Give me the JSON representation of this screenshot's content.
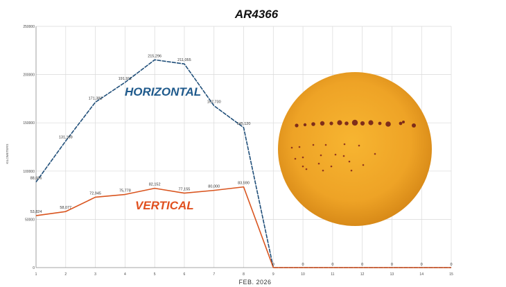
{
  "chart_data": {
    "type": "line",
    "title": "AR4366",
    "xlabel": "FEB. 2026",
    "ylabel": "KILOMETERS",
    "x": [
      1,
      2,
      3,
      4,
      5,
      6,
      7,
      8,
      9,
      10,
      11,
      12,
      13,
      14,
      15
    ],
    "xlim": [
      1,
      15
    ],
    "ylim": [
      0,
      250000
    ],
    "yticks": [
      0,
      50000,
      100000,
      150000,
      200000,
      250000
    ],
    "grid": true,
    "series": [
      {
        "name": "HORIZONTAL",
        "color": "#1f4e79",
        "dashed": true,
        "values": [
          88686,
          131189,
          171382,
          191911,
          215296,
          211055,
          167730,
          145120,
          0,
          0,
          0,
          0,
          0,
          0,
          0
        ],
        "labels": [
          "88,686",
          "131,189",
          "171,382",
          "191,911",
          "215,296",
          "211,055",
          "167,730",
          "145,120",
          "0",
          "0",
          "0",
          "0",
          "0",
          "0",
          "0"
        ]
      },
      {
        "name": "VERTICAL",
        "color": "#d9541e",
        "dashed": false,
        "values": [
          53824,
          58077,
          72945,
          75778,
          82152,
          77155,
          80000,
          83590,
          0,
          0,
          0,
          0,
          0,
          0,
          0
        ],
        "labels": [
          "53,824",
          "58,077",
          "72,945",
          "75,778",
          "82,152",
          "77,155",
          "80,000",
          "83,590",
          "0",
          "0",
          "0",
          "0",
          "0",
          "0",
          "0"
        ]
      }
    ],
    "annotations": [
      {
        "text": "HORIZONTAL",
        "color": "#1f5a8c"
      },
      {
        "text": "VERTICAL",
        "color": "#e0501f"
      }
    ],
    "inset": "sun-disk-image"
  }
}
